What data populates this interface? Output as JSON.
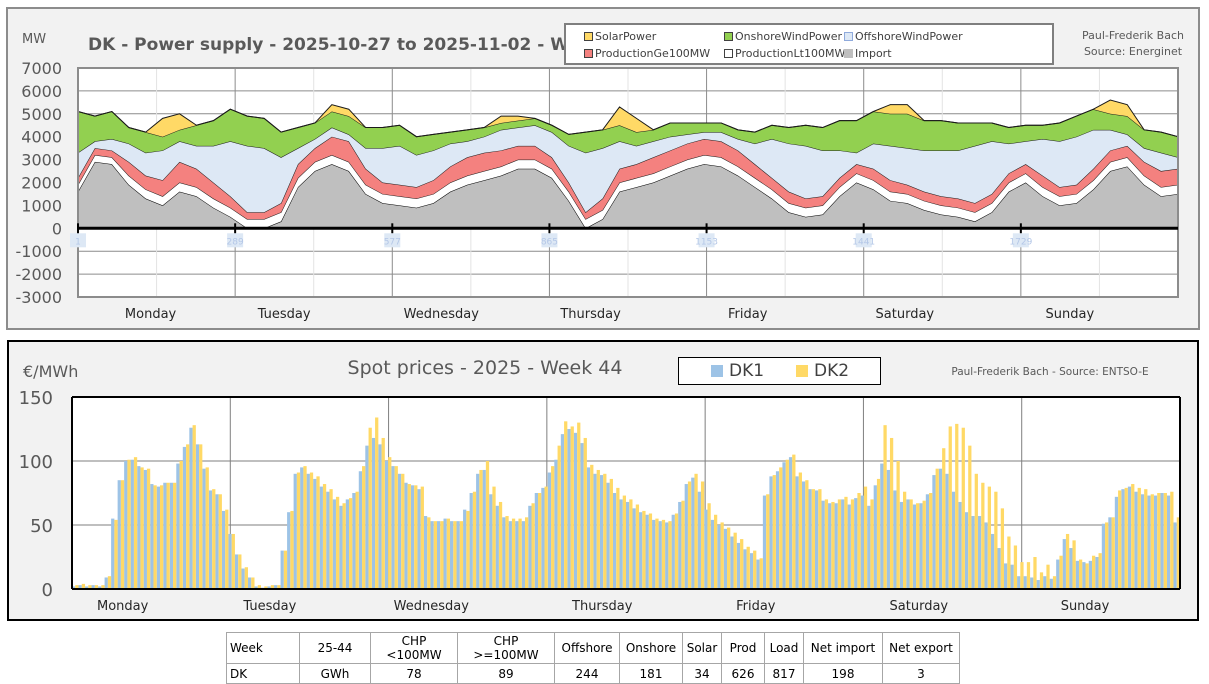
{
  "power_panel": {
    "unit_label": "MW",
    "title": "DK - Power supply - 2025-10-27 to 2025-11-02 - Week 44",
    "credit_line1": "Paul-Frederik Bach",
    "credit_line2": "Source: Energinet",
    "legend": [
      {
        "label": "SolarPower",
        "color": "#ffd966"
      },
      {
        "label": "OnshoreWindPower",
        "color": "#92d050"
      },
      {
        "label": "OffshoreWindPower",
        "color": "#dde8f5"
      },
      {
        "label": "ProductionGe100MW",
        "color": "#f4817f"
      },
      {
        "label": "ProductionLt100MW",
        "color": "#ffffff"
      },
      {
        "label": "Import",
        "color": "#bfbfbf"
      }
    ],
    "x_index_labels": [
      "1",
      "289",
      "577",
      "865",
      "1153",
      "1441",
      "1729"
    ]
  },
  "price_panel": {
    "unit_label": "€/MWh",
    "title": "Spot prices - 2025 - Week 44",
    "credit": "Paul-Frederik Bach - Source: ENTSO-E",
    "legend": [
      {
        "label": "DK1",
        "color": "#9dc3e6"
      },
      {
        "label": "DK2",
        "color": "#ffd966"
      }
    ]
  },
  "summary_table": {
    "header": [
      "Week",
      "25-44",
      "CHP <100MW",
      "CHP >=100MW",
      "Offshore",
      "Onshore",
      "Solar",
      "Prod",
      "Load",
      "Net import",
      "Net export"
    ],
    "row": [
      "DK",
      "GWh",
      "78",
      "89",
      "244",
      "181",
      "34",
      "626",
      "817",
      "198",
      "3"
    ]
  },
  "chart_data": [
    {
      "type": "area",
      "stacked": true,
      "title": "DK - Power supply - 2025-10-27 to 2025-11-02 - Week 44",
      "ylabel": "MW",
      "ylim": [
        -3000,
        7000
      ],
      "yticks": [
        7000,
        6000,
        5000,
        4000,
        3000,
        2000,
        1000,
        0,
        -1000,
        -2000,
        -3000
      ],
      "categories": [
        "Monday",
        "Tuesday",
        "Wednesday",
        "Thursday",
        "Friday",
        "Saturday",
        "Sunday"
      ],
      "x_step_hours": 3,
      "grid": true,
      "legend_position": "top-right",
      "series": [
        {
          "name": "Import",
          "color": "#bfbfbf",
          "values": [
            1600,
            2900,
            2800,
            1900,
            1300,
            1000,
            1600,
            1400,
            900,
            500,
            0,
            0,
            300,
            1800,
            2500,
            2800,
            2500,
            1500,
            1100,
            1000,
            900,
            1100,
            1600,
            1900,
            2100,
            2300,
            2600,
            2600,
            2200,
            1200,
            0,
            400,
            1600,
            1800,
            2000,
            2300,
            2600,
            2800,
            2700,
            2300,
            1800,
            1300,
            700,
            500,
            600,
            1400,
            2000,
            1700,
            1200,
            1100,
            800,
            600,
            500,
            300,
            700,
            1600,
            2000,
            1400,
            1000,
            1100,
            1700,
            2500,
            2700,
            1900,
            1400,
            1500
          ]
        },
        {
          "name": "ProductionLt100MW",
          "color": "#ffffff",
          "values": [
            300,
            300,
            300,
            400,
            400,
            400,
            400,
            400,
            400,
            400,
            400,
            400,
            400,
            400,
            400,
            400,
            400,
            400,
            400,
            400,
            400,
            400,
            400,
            400,
            400,
            400,
            400,
            400,
            400,
            400,
            400,
            400,
            400,
            400,
            400,
            400,
            400,
            400,
            400,
            400,
            400,
            400,
            400,
            400,
            400,
            400,
            400,
            400,
            400,
            400,
            400,
            400,
            400,
            400,
            400,
            400,
            400,
            400,
            400,
            400,
            400,
            400,
            400,
            400,
            400,
            400
          ]
        },
        {
          "name": "ProductionGe100MW",
          "color": "#f4817f",
          "values": [
            300,
            300,
            300,
            600,
            600,
            700,
            900,
            800,
            700,
            500,
            300,
            300,
            400,
            600,
            600,
            800,
            900,
            700,
            500,
            500,
            500,
            600,
            700,
            800,
            800,
            700,
            600,
            600,
            500,
            400,
            300,
            500,
            600,
            600,
            700,
            700,
            700,
            700,
            700,
            700,
            600,
            500,
            500,
            400,
            400,
            400,
            400,
            500,
            500,
            400,
            400,
            400,
            400,
            400,
            400,
            400,
            400,
            500,
            400,
            400,
            500,
            500,
            500,
            600,
            700,
            700
          ]
        },
        {
          "name": "OffshoreWindPower",
          "color": "#dde8f5",
          "values": [
            1100,
            300,
            500,
            800,
            1000,
            1300,
            900,
            1000,
            1600,
            2400,
            2900,
            2800,
            2000,
            700,
            400,
            400,
            300,
            900,
            1500,
            1700,
            1400,
            1300,
            1000,
            700,
            700,
            900,
            800,
            900,
            1100,
            1600,
            2600,
            2200,
            1200,
            800,
            700,
            600,
            400,
            300,
            400,
            500,
            900,
            1700,
            2100,
            2300,
            2000,
            1200,
            500,
            1100,
            1500,
            1600,
            1800,
            2000,
            2100,
            2500,
            2300,
            1300,
            1000,
            1600,
            2000,
            2100,
            1700,
            900,
            500,
            600,
            800,
            500
          ]
        },
        {
          "name": "OnshoreWindPower",
          "color": "#92d050",
          "values": [
            1800,
            1100,
            1200,
            700,
            900,
            600,
            500,
            900,
            1100,
            1400,
            1300,
            1300,
            1100,
            900,
            700,
            700,
            800,
            900,
            900,
            900,
            800,
            700,
            500,
            500,
            400,
            300,
            300,
            300,
            300,
            500,
            900,
            800,
            700,
            600,
            500,
            600,
            500,
            400,
            400,
            400,
            500,
            600,
            700,
            900,
            1000,
            1300,
            1400,
            1400,
            1400,
            1500,
            1300,
            1300,
            1200,
            1000,
            800,
            700,
            700,
            600,
            800,
            900,
            900,
            700,
            800,
            800,
            900,
            900
          ]
        },
        {
          "name": "SolarPower",
          "color": "#ffd966",
          "values": [
            0,
            0,
            0,
            0,
            0,
            800,
            700,
            0,
            0,
            0,
            0,
            0,
            0,
            0,
            0,
            300,
            300,
            0,
            0,
            0,
            0,
            0,
            0,
            0,
            0,
            300,
            200,
            0,
            0,
            0,
            0,
            0,
            800,
            600,
            0,
            0,
            0,
            0,
            0,
            0,
            0,
            0,
            0,
            0,
            0,
            0,
            0,
            0,
            400,
            400,
            0,
            0,
            0,
            0,
            0,
            0,
            0,
            0,
            0,
            0,
            0,
            600,
            500,
            0,
            0,
            0
          ]
        }
      ]
    },
    {
      "type": "bar",
      "title": "Spot prices - 2025 - Week 44",
      "ylabel": "€/MWh",
      "ylim": [
        0,
        150
      ],
      "yticks": [
        150,
        100,
        50,
        0
      ],
      "categories": [
        "Monday",
        "Tuesday",
        "Wednesday",
        "Thursday",
        "Friday",
        "Saturday",
        "Sunday"
      ],
      "x_unit": "hour",
      "grid": true,
      "legend_position": "top-right",
      "series": [
        {
          "name": "DK1",
          "color": "#9dc3e6",
          "values": [
            2,
            3,
            2,
            3,
            2,
            9,
            55,
            85,
            100,
            101,
            96,
            93,
            82,
            80,
            83,
            83,
            98,
            111,
            126,
            113,
            94,
            77,
            74,
            61,
            43,
            27,
            16,
            9,
            2,
            1,
            2,
            3,
            30,
            60,
            90,
            95,
            90,
            86,
            80,
            76,
            70,
            65,
            70,
            75,
            92,
            112,
            118,
            113,
            100,
            96,
            90,
            83,
            81,
            78,
            57,
            53,
            53,
            55,
            53,
            53,
            62,
            75,
            90,
            93,
            74,
            65,
            56,
            53,
            53,
            53,
            65,
            75,
            79,
            91,
            101,
            121,
            125,
            122,
            114,
            95,
            90,
            89,
            83,
            75,
            70,
            68,
            63,
            60,
            58,
            54,
            53,
            52,
            58,
            68,
            82,
            87,
            76,
            62,
            54,
            50,
            47,
            41,
            36,
            31,
            28,
            23,
            73,
            88,
            92,
            99,
            103,
            88,
            84,
            78,
            77,
            69,
            67,
            67,
            70,
            66,
            71,
            73,
            65,
            81,
            98,
            93,
            77,
            68,
            70,
            66,
            67,
            74,
            89,
            94,
            90,
            76,
            68,
            60,
            57,
            57,
            52,
            43,
            32,
            20,
            19,
            10,
            10,
            9,
            7,
            10,
            8,
            23,
            39,
            32,
            22,
            21,
            22,
            25,
            51,
            56,
            72,
            78,
            80,
            76,
            74,
            73,
            73,
            75,
            73,
            52
          ]
        },
        {
          "name": "DK2",
          "color": "#ffd966",
          "values": [
            3,
            4,
            3,
            3,
            3,
            10,
            54,
            85,
            101,
            103,
            95,
            94,
            81,
            81,
            83,
            83,
            100,
            113,
            128,
            113,
            95,
            78,
            74,
            62,
            43,
            27,
            17,
            9,
            3,
            2,
            3,
            3,
            30,
            61,
            91,
            96,
            91,
            88,
            82,
            78,
            72,
            67,
            71,
            76,
            96,
            126,
            134,
            118,
            103,
            96,
            90,
            82,
            81,
            80,
            56,
            53,
            53,
            55,
            53,
            53,
            61,
            76,
            93,
            100,
            80,
            68,
            57,
            55,
            55,
            56,
            67,
            75,
            80,
            96,
            112,
            131,
            127,
            130,
            118,
            97,
            93,
            90,
            86,
            79,
            73,
            70,
            66,
            61,
            59,
            55,
            54,
            53,
            59,
            69,
            84,
            90,
            84,
            67,
            58,
            52,
            48,
            44,
            39,
            33,
            30,
            24,
            74,
            89,
            95,
            101,
            105,
            91,
            85,
            78,
            78,
            70,
            68,
            70,
            72,
            70,
            75,
            80,
            70,
            86,
            128,
            118,
            100,
            76,
            70,
            67,
            69,
            75,
            94,
            110,
            127,
            129,
            126,
            112,
            90,
            83,
            80,
            76,
            63,
            41,
            34,
            21,
            21,
            25,
            13,
            19,
            10,
            26,
            43,
            38,
            23,
            20,
            26,
            28,
            52,
            56,
            77,
            79,
            82,
            79,
            78,
            74,
            75,
            75,
            76,
            56
          ]
        }
      ]
    }
  ]
}
